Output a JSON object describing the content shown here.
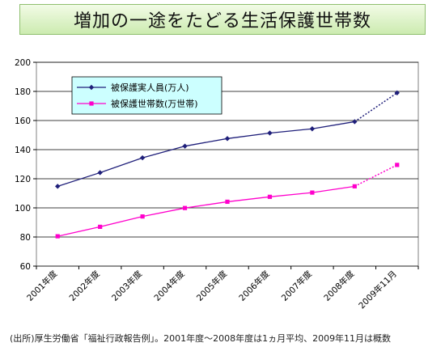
{
  "title": "増加の一途をたどる生活保護世帯数",
  "source_note": "(出所)厚生労働省「福祉行政報告例」。2001年度～2008年度は1ヵ月平均、2009年11月は概数",
  "chart_data": {
    "type": "line",
    "categories": [
      "2001年度",
      "2002年度",
      "2003年度",
      "2004年度",
      "2005年度",
      "2006年度",
      "2007年度",
      "2008年度",
      "2009年11月"
    ],
    "ylim": [
      60,
      200
    ],
    "yticks": [
      60,
      80,
      100,
      120,
      140,
      160,
      180,
      200
    ],
    "grid": true,
    "legend_position": "top-left",
    "series": [
      {
        "name": "被保護実人員(万人)",
        "color": "#1f1f7a",
        "marker": "diamond",
        "values": [
          114.8,
          124.2,
          134.4,
          142.4,
          147.6,
          151.4,
          154.3,
          159.2,
          179.0
        ],
        "dashed_last_segment": true
      },
      {
        "name": "被保護世帯数(万世帯)",
        "color": "#ff00cc",
        "marker": "square",
        "values": [
          80.5,
          87.0,
          94.1,
          99.9,
          104.2,
          107.6,
          110.5,
          114.8,
          129.5
        ],
        "dashed_last_segment": true
      }
    ]
  }
}
